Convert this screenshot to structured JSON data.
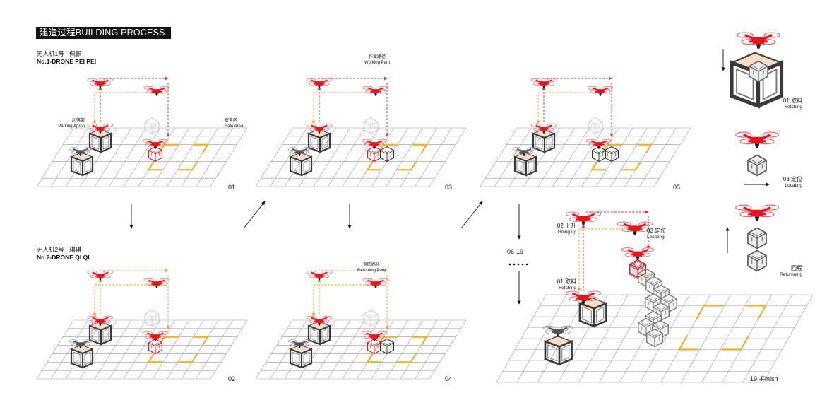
{
  "header": {
    "title": "建造过程BUILDING  PROCESS"
  },
  "drone1": {
    "name_cn": "无人机1号 - 佩佩",
    "name_en": "No.1-DRONE PEI PEI"
  },
  "drone2": {
    "name_cn": "无人机2号 - 琪琪",
    "name_en": "No.2-DRONE  QI QI"
  },
  "annotations": {
    "parking_cn": "起落架",
    "parking_en": "Parking Apron",
    "safe_cn": "安全区",
    "safe_en": "Safe  Area",
    "working_cn": "作业路径",
    "working_en": "Working Path",
    "returning_cn": "返回路径",
    "returning_en": "Returning  Path"
  },
  "steps": {
    "s01": "01",
    "s02": "02",
    "s03": "03",
    "s04": "04",
    "s05": "05",
    "range": "06-19",
    "finish": "19 -Finish"
  },
  "big_panel": {
    "going_up_cn": "02 上升",
    "going_up_en": "Going up",
    "locating_cn": "03 定位",
    "locating_en": "Locating",
    "fetching_cn": "01 取料",
    "fetching_en": "Fetching"
  },
  "side_panel": {
    "fetching_cn": "01 取料",
    "fetching_en": "Fetching",
    "locating_cn": "03 定位",
    "locating_en": "Locating",
    "returning_cn": "回程",
    "returning_en": "Returnning"
  },
  "colors": {
    "drone_red": "#e8141c",
    "path_red": "#e23a3a",
    "path_orange": "#f0a828",
    "safe_zone": "#f0b030",
    "grid_line": "#9a9a9a",
    "box_dark": "#3a3a3a",
    "banner_bg": "#141414"
  }
}
